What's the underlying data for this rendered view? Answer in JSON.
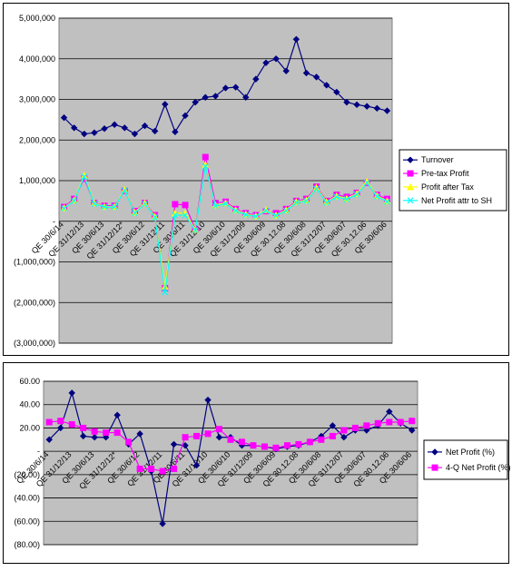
{
  "chart_data": [
    {
      "type": "line",
      "categories": [
        "QE 30/6/14",
        null,
        "QE 31/12/13",
        null,
        "QE 30/6/13",
        null,
        "QE 31/12/12*",
        null,
        "QE 30/6/12",
        null,
        "QE 31/12/11",
        null,
        "QE 30/6/11",
        null,
        "QE 31/12/10",
        null,
        "QE 30/6/10",
        null,
        "QE 31/12/09",
        null,
        "QE 30/6/09",
        null,
        "QE 30.12.08",
        null,
        "QE 30/6/08",
        null,
        "QE 31/12/07",
        null,
        "QE 30/6/07",
        null,
        "QE 30.12.06",
        null,
        "QE 30/6/06"
      ],
      "series": [
        {
          "name": "Turnover",
          "color": "#000080",
          "marker": "diamond",
          "values": [
            2550000,
            2300000,
            2150000,
            2180000,
            2280000,
            2380000,
            2300000,
            2150000,
            2350000,
            2220000,
            2880000,
            2200000,
            2600000,
            2930000,
            3050000,
            3080000,
            3280000,
            3300000,
            3050000,
            3500000,
            3900000,
            4000000,
            3700000,
            4480000,
            3650000,
            3550000,
            3350000,
            3180000,
            2930000,
            2870000,
            2830000,
            2780000,
            2720000
          ]
        },
        {
          "name": "Pre-tax Profit",
          "color": "#ff00ff",
          "marker": "square",
          "values": [
            350000,
            550000,
            1050000,
            450000,
            380000,
            380000,
            750000,
            250000,
            450000,
            150000,
            -1650000,
            420000,
            400000,
            -200000,
            1580000,
            450000,
            480000,
            300000,
            200000,
            150000,
            250000,
            200000,
            300000,
            500000,
            550000,
            850000,
            500000,
            650000,
            600000,
            700000,
            950000,
            650000,
            550000
          ]
        },
        {
          "name": "Profit after Tax",
          "color": "#ffff00",
          "marker": "triangle",
          "values": [
            330000,
            520000,
            1130000,
            450000,
            360000,
            360000,
            780000,
            220000,
            450000,
            120000,
            -1600000,
            200000,
            200000,
            -200000,
            1400000,
            400000,
            450000,
            280000,
            180000,
            130000,
            280000,
            150000,
            280000,
            480000,
            520000,
            830000,
            480000,
            620000,
            560000,
            680000,
            980000,
            630000,
            500000
          ]
        },
        {
          "name": "Net Profit attr to SH",
          "color": "#00ffff",
          "marker": "cross",
          "values": [
            320000,
            500000,
            1100000,
            430000,
            350000,
            350000,
            760000,
            200000,
            430000,
            100000,
            -1750000,
            150000,
            150000,
            -220000,
            1350000,
            380000,
            430000,
            260000,
            160000,
            120000,
            260000,
            140000,
            260000,
            460000,
            500000,
            800000,
            460000,
            600000,
            540000,
            660000,
            950000,
            610000,
            480000
          ]
        }
      ],
      "ylim": [
        -3000000,
        5000000
      ],
      "yticks": [
        {
          "value": 5000000,
          "label": "5,000,000"
        },
        {
          "value": 4000000,
          "label": "4,000,000"
        },
        {
          "value": 3000000,
          "label": "3,000,000"
        },
        {
          "value": 2000000,
          "label": "2,000,000"
        },
        {
          "value": 1000000,
          "label": "1,000,000"
        },
        {
          "value": 0,
          "label": "-"
        },
        {
          "value": -1000000,
          "label": "(1,000,000)"
        },
        {
          "value": -2000000,
          "label": "(2,000,000)"
        },
        {
          "value": -3000000,
          "label": "(3,000,000)"
        }
      ],
      "grid": true,
      "legend": "right"
    },
    {
      "type": "line",
      "categories": [
        "QE 30/6/14",
        null,
        "QE 31/12/13",
        null,
        "QE 30/6/13",
        null,
        "QE 31/12/12*",
        null,
        "QE 30/6/12",
        null,
        "QE 31/12/11",
        null,
        "QE 30/6/11",
        null,
        "QE 31/12/10",
        null,
        "QE 30/6/10",
        null,
        "QE 31/12/09",
        null,
        "QE 30/6/09",
        null,
        "QE 30.12.08",
        null,
        "QE 30/6/08",
        null,
        "QE 31/12/07",
        null,
        "QE 30/6/07",
        null,
        "QE 30.12.06",
        null,
        "QE 30/6/06"
      ],
      "series": [
        {
          "name": "Net Profit (%)",
          "color": "#000080",
          "marker": "diamond",
          "values": [
            10,
            20,
            50,
            13,
            12,
            12,
            31,
            6,
            15,
            -17,
            -62,
            6,
            5,
            -12,
            44,
            12,
            12,
            5,
            5,
            4,
            2,
            4,
            5,
            8,
            13,
            22,
            12,
            18,
            18,
            22,
            34,
            24,
            18
          ]
        },
        {
          "name": "4-Q Net Profit (%)",
          "color": "#ff00ff",
          "marker": "square",
          "values": [
            25,
            26,
            23,
            20,
            17,
            16,
            16,
            8,
            -15,
            -15,
            -17,
            -15,
            12,
            13,
            15,
            19,
            10,
            8,
            5,
            4,
            3,
            5,
            6,
            8,
            10,
            13,
            18,
            20,
            22,
            24,
            25,
            25,
            26
          ]
        }
      ],
      "ylim": [
        -80,
        60
      ],
      "yticks": [
        {
          "value": 60,
          "label": "60.00"
        },
        {
          "value": 40,
          "label": "40.00"
        },
        {
          "value": 20,
          "label": "20.00"
        },
        {
          "value": 0,
          "label": "-"
        },
        {
          "value": -20,
          "label": "(20.00)"
        },
        {
          "value": -40,
          "label": "(40.00)"
        },
        {
          "value": -60,
          "label": "(60.00)"
        },
        {
          "value": -80,
          "label": "(80.00)"
        }
      ],
      "grid": true,
      "legend": "right"
    }
  ]
}
